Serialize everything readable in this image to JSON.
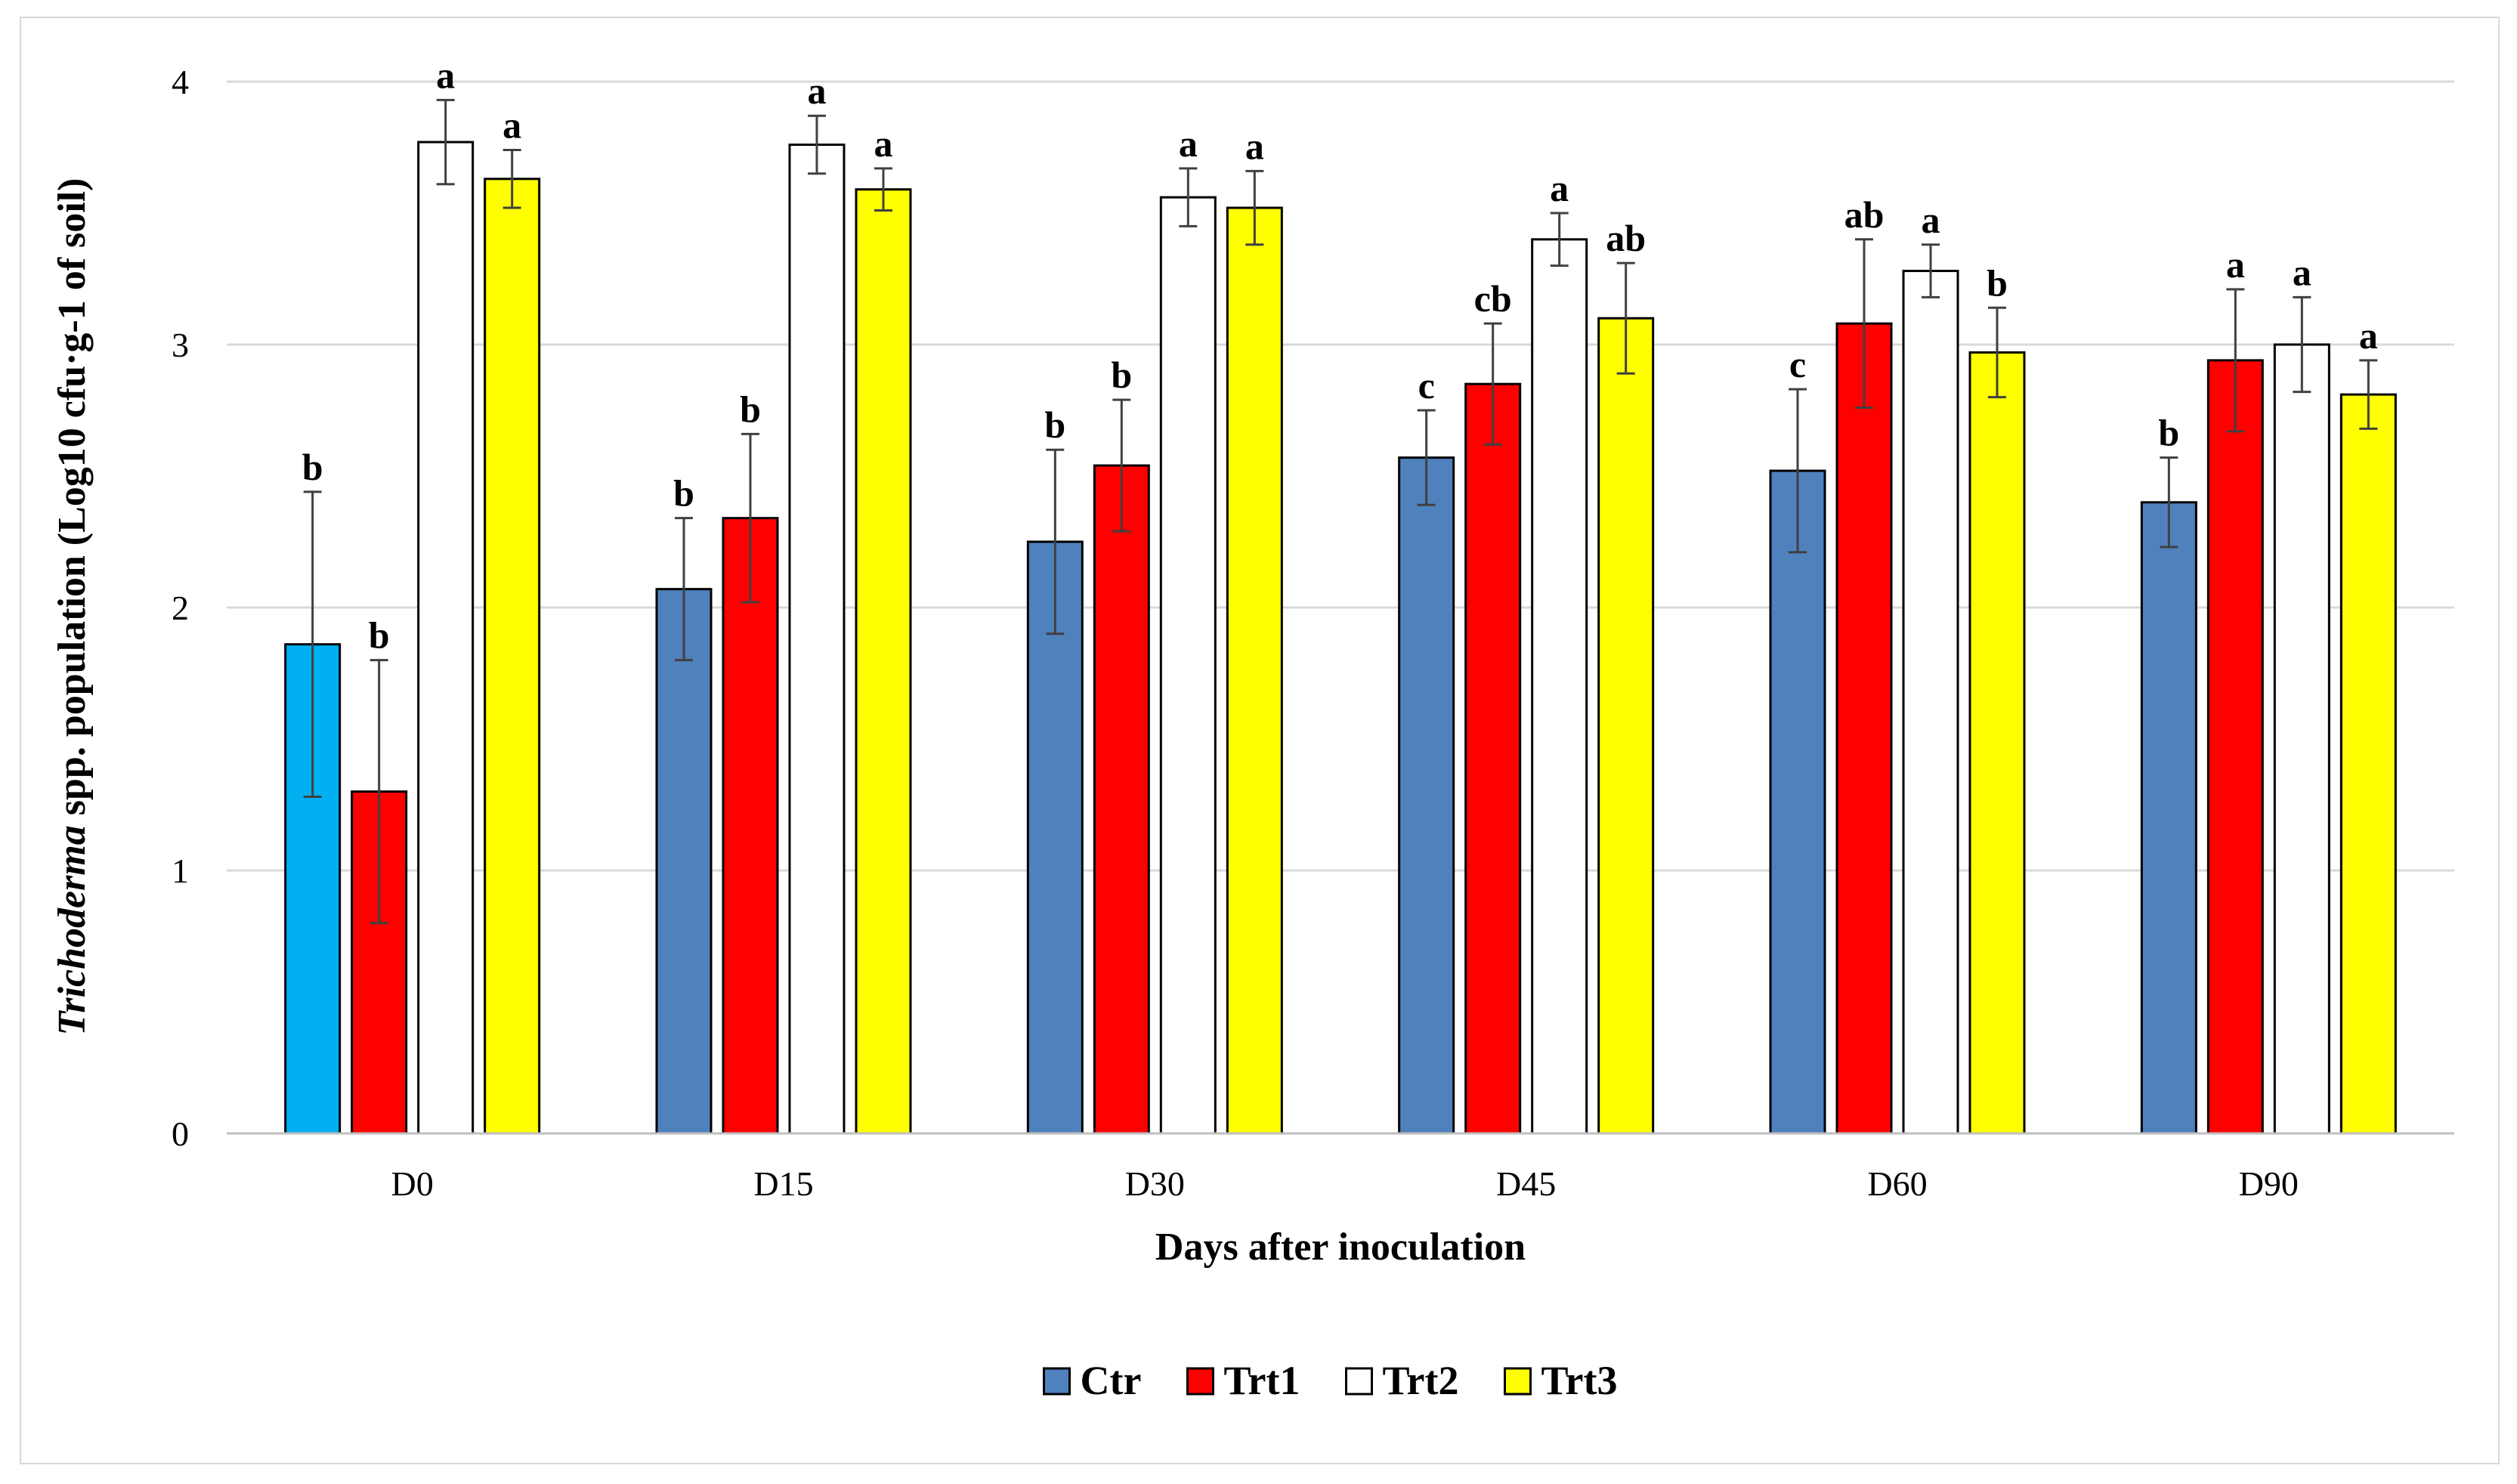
{
  "chart_data": {
    "type": "bar",
    "categories": [
      "D0",
      "D15",
      "D30",
      "D45",
      "D60",
      "D90"
    ],
    "series": [
      {
        "name": "Ctr",
        "color": "#4F81BD",
        "values": [
          1.86,
          2.07,
          2.25,
          2.57,
          2.52,
          2.4
        ],
        "errors": [
          0.58,
          0.27,
          0.35,
          0.18,
          0.31,
          0.17
        ],
        "letters": [
          "b",
          "b",
          "b",
          "c",
          "c",
          "b"
        ]
      },
      {
        "name": "Trt1",
        "color": "#FF0000",
        "values": [
          1.3,
          2.34,
          2.54,
          2.85,
          3.08,
          2.94
        ],
        "errors": [
          0.5,
          0.32,
          0.25,
          0.23,
          0.32,
          0.27
        ],
        "letters": [
          "b",
          "b",
          "b",
          "cb",
          "ab",
          "a"
        ]
      },
      {
        "name": "Trt2",
        "color": "#FFFFFF",
        "values": [
          3.77,
          3.76,
          3.56,
          3.4,
          3.28,
          3.0
        ],
        "errors": [
          0.16,
          0.11,
          0.11,
          0.1,
          0.1,
          0.18
        ],
        "letters": [
          "a",
          "a",
          "a",
          "a",
          "a",
          "a"
        ]
      },
      {
        "name": "Trt3",
        "color": "#FFFF00",
        "values": [
          3.63,
          3.59,
          3.52,
          3.1,
          2.97,
          2.81
        ],
        "errors": [
          0.11,
          0.08,
          0.14,
          0.21,
          0.17,
          0.13
        ],
        "letters": [
          "a",
          "a",
          "a",
          "ab",
          "b",
          "a"
        ]
      }
    ],
    "first_bar_color": "#00B0F0",
    "xlabel": "Days after inoculation",
    "ylabel_italic": "Trichoderma",
    "ylabel_rest": " spp. population (Log10 cfu·g-1 of soil)",
    "ylim": [
      0,
      4
    ],
    "yticks": [
      0,
      1,
      2,
      3,
      4
    ],
    "grid": true,
    "legend_position": "bottom-center"
  }
}
